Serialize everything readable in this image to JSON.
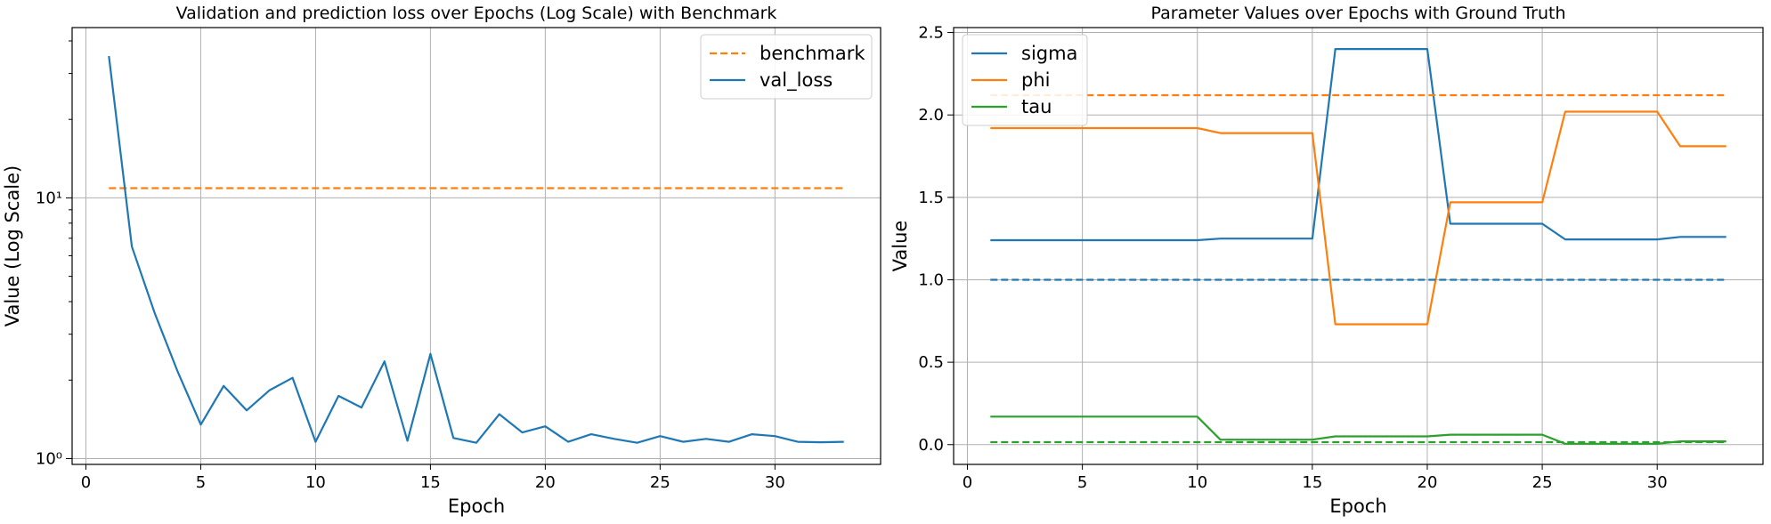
{
  "chart_data": [
    {
      "type": "line",
      "title": "Validation and prediction loss over Epochs (Log Scale) with Benchmark",
      "xlabel": "Epoch",
      "ylabel": "Value (Log Scale)",
      "yscale": "log",
      "xlim": [
        -0.6,
        34.6
      ],
      "ylim": [
        0.95,
        45
      ],
      "xticks": [
        0,
        5,
        10,
        15,
        20,
        25,
        30
      ],
      "yticks": [
        1,
        10
      ],
      "ytick_labels": [
        "10⁰",
        "10¹"
      ],
      "grid": true,
      "legend_position": "top-right",
      "series": [
        {
          "name": "benchmark",
          "style": "dashed",
          "color": "#ff7f0e",
          "x": [
            1,
            33
          ],
          "values": [
            10.9,
            10.9
          ]
        },
        {
          "name": "val_loss",
          "style": "solid",
          "color": "#1f77b4",
          "x": [
            1,
            2,
            3,
            4,
            5,
            6,
            7,
            8,
            9,
            10,
            11,
            12,
            13,
            14,
            15,
            16,
            17,
            18,
            19,
            20,
            21,
            22,
            23,
            24,
            25,
            26,
            27,
            28,
            29,
            30,
            31,
            32,
            33
          ],
          "values": [
            35,
            6.5,
            3.6,
            2.15,
            1.35,
            1.9,
            1.53,
            1.83,
            2.04,
            1.16,
            1.74,
            1.57,
            2.36,
            1.17,
            2.52,
            1.2,
            1.15,
            1.48,
            1.26,
            1.33,
            1.16,
            1.24,
            1.19,
            1.15,
            1.22,
            1.16,
            1.19,
            1.16,
            1.24,
            1.22,
            1.16,
            1.155,
            1.16
          ]
        }
      ]
    },
    {
      "type": "line",
      "title": "Parameter Values over Epochs with Ground Truth",
      "xlabel": "Epoch",
      "ylabel": "Value",
      "xlim": [
        -0.6,
        34.6
      ],
      "ylim": [
        -0.12,
        2.53
      ],
      "xticks": [
        0,
        5,
        10,
        15,
        20,
        25,
        30
      ],
      "yticks": [
        0.0,
        0.5,
        1.0,
        1.5,
        2.0,
        2.5
      ],
      "grid": true,
      "legend_position": "top-left",
      "series": [
        {
          "name": "sigma",
          "color": "#1f77b4",
          "x": [
            1,
            2,
            3,
            4,
            5,
            6,
            7,
            8,
            9,
            10,
            11,
            12,
            13,
            14,
            15,
            16,
            17,
            18,
            19,
            20,
            21,
            22,
            23,
            24,
            25,
            26,
            27,
            28,
            29,
            30,
            31,
            32,
            33
          ],
          "values": [
            1.24,
            1.24,
            1.24,
            1.24,
            1.24,
            1.24,
            1.24,
            1.24,
            1.24,
            1.24,
            1.25,
            1.25,
            1.25,
            1.25,
            1.25,
            2.4,
            2.4,
            2.4,
            2.4,
            2.4,
            1.34,
            1.34,
            1.34,
            1.34,
            1.34,
            1.245,
            1.245,
            1.245,
            1.245,
            1.245,
            1.26,
            1.26,
            1.26
          ]
        },
        {
          "name": "phi",
          "color": "#ff7f0e",
          "x": [
            1,
            2,
            3,
            4,
            5,
            6,
            7,
            8,
            9,
            10,
            11,
            12,
            13,
            14,
            15,
            16,
            17,
            18,
            19,
            20,
            21,
            22,
            23,
            24,
            25,
            26,
            27,
            28,
            29,
            30,
            31,
            32,
            33
          ],
          "values": [
            1.92,
            1.92,
            1.92,
            1.92,
            1.92,
            1.92,
            1.92,
            1.92,
            1.92,
            1.92,
            1.89,
            1.89,
            1.89,
            1.89,
            1.89,
            0.73,
            0.73,
            0.73,
            0.73,
            0.73,
            1.47,
            1.47,
            1.47,
            1.47,
            1.47,
            2.02,
            2.02,
            2.02,
            2.02,
            2.02,
            1.81,
            1.81,
            1.81
          ]
        },
        {
          "name": "tau",
          "color": "#2ca02c",
          "x": [
            1,
            2,
            3,
            4,
            5,
            6,
            7,
            8,
            9,
            10,
            11,
            12,
            13,
            14,
            15,
            16,
            17,
            18,
            19,
            20,
            21,
            22,
            23,
            24,
            25,
            26,
            27,
            28,
            29,
            30,
            31,
            32,
            33
          ],
          "values": [
            0.17,
            0.17,
            0.17,
            0.17,
            0.17,
            0.17,
            0.17,
            0.17,
            0.17,
            0.17,
            0.03,
            0.03,
            0.03,
            0.03,
            0.03,
            0.05,
            0.05,
            0.05,
            0.05,
            0.05,
            0.06,
            0.06,
            0.06,
            0.06,
            0.06,
            0.005,
            0.005,
            0.005,
            0.005,
            0.005,
            0.02,
            0.02,
            0.02
          ]
        },
        {
          "name": "",
          "style": "dashed",
          "color": "#1f77b4",
          "x": [
            1,
            33
          ],
          "values": [
            1.0,
            1.0
          ]
        },
        {
          "name": "",
          "style": "dashed",
          "color": "#ff7f0e",
          "x": [
            1,
            33
          ],
          "values": [
            2.12,
            2.12
          ]
        },
        {
          "name": "",
          "style": "dashed",
          "color": "#2ca02c",
          "x": [
            1,
            33
          ],
          "values": [
            0.015,
            0.015
          ]
        }
      ]
    }
  ]
}
